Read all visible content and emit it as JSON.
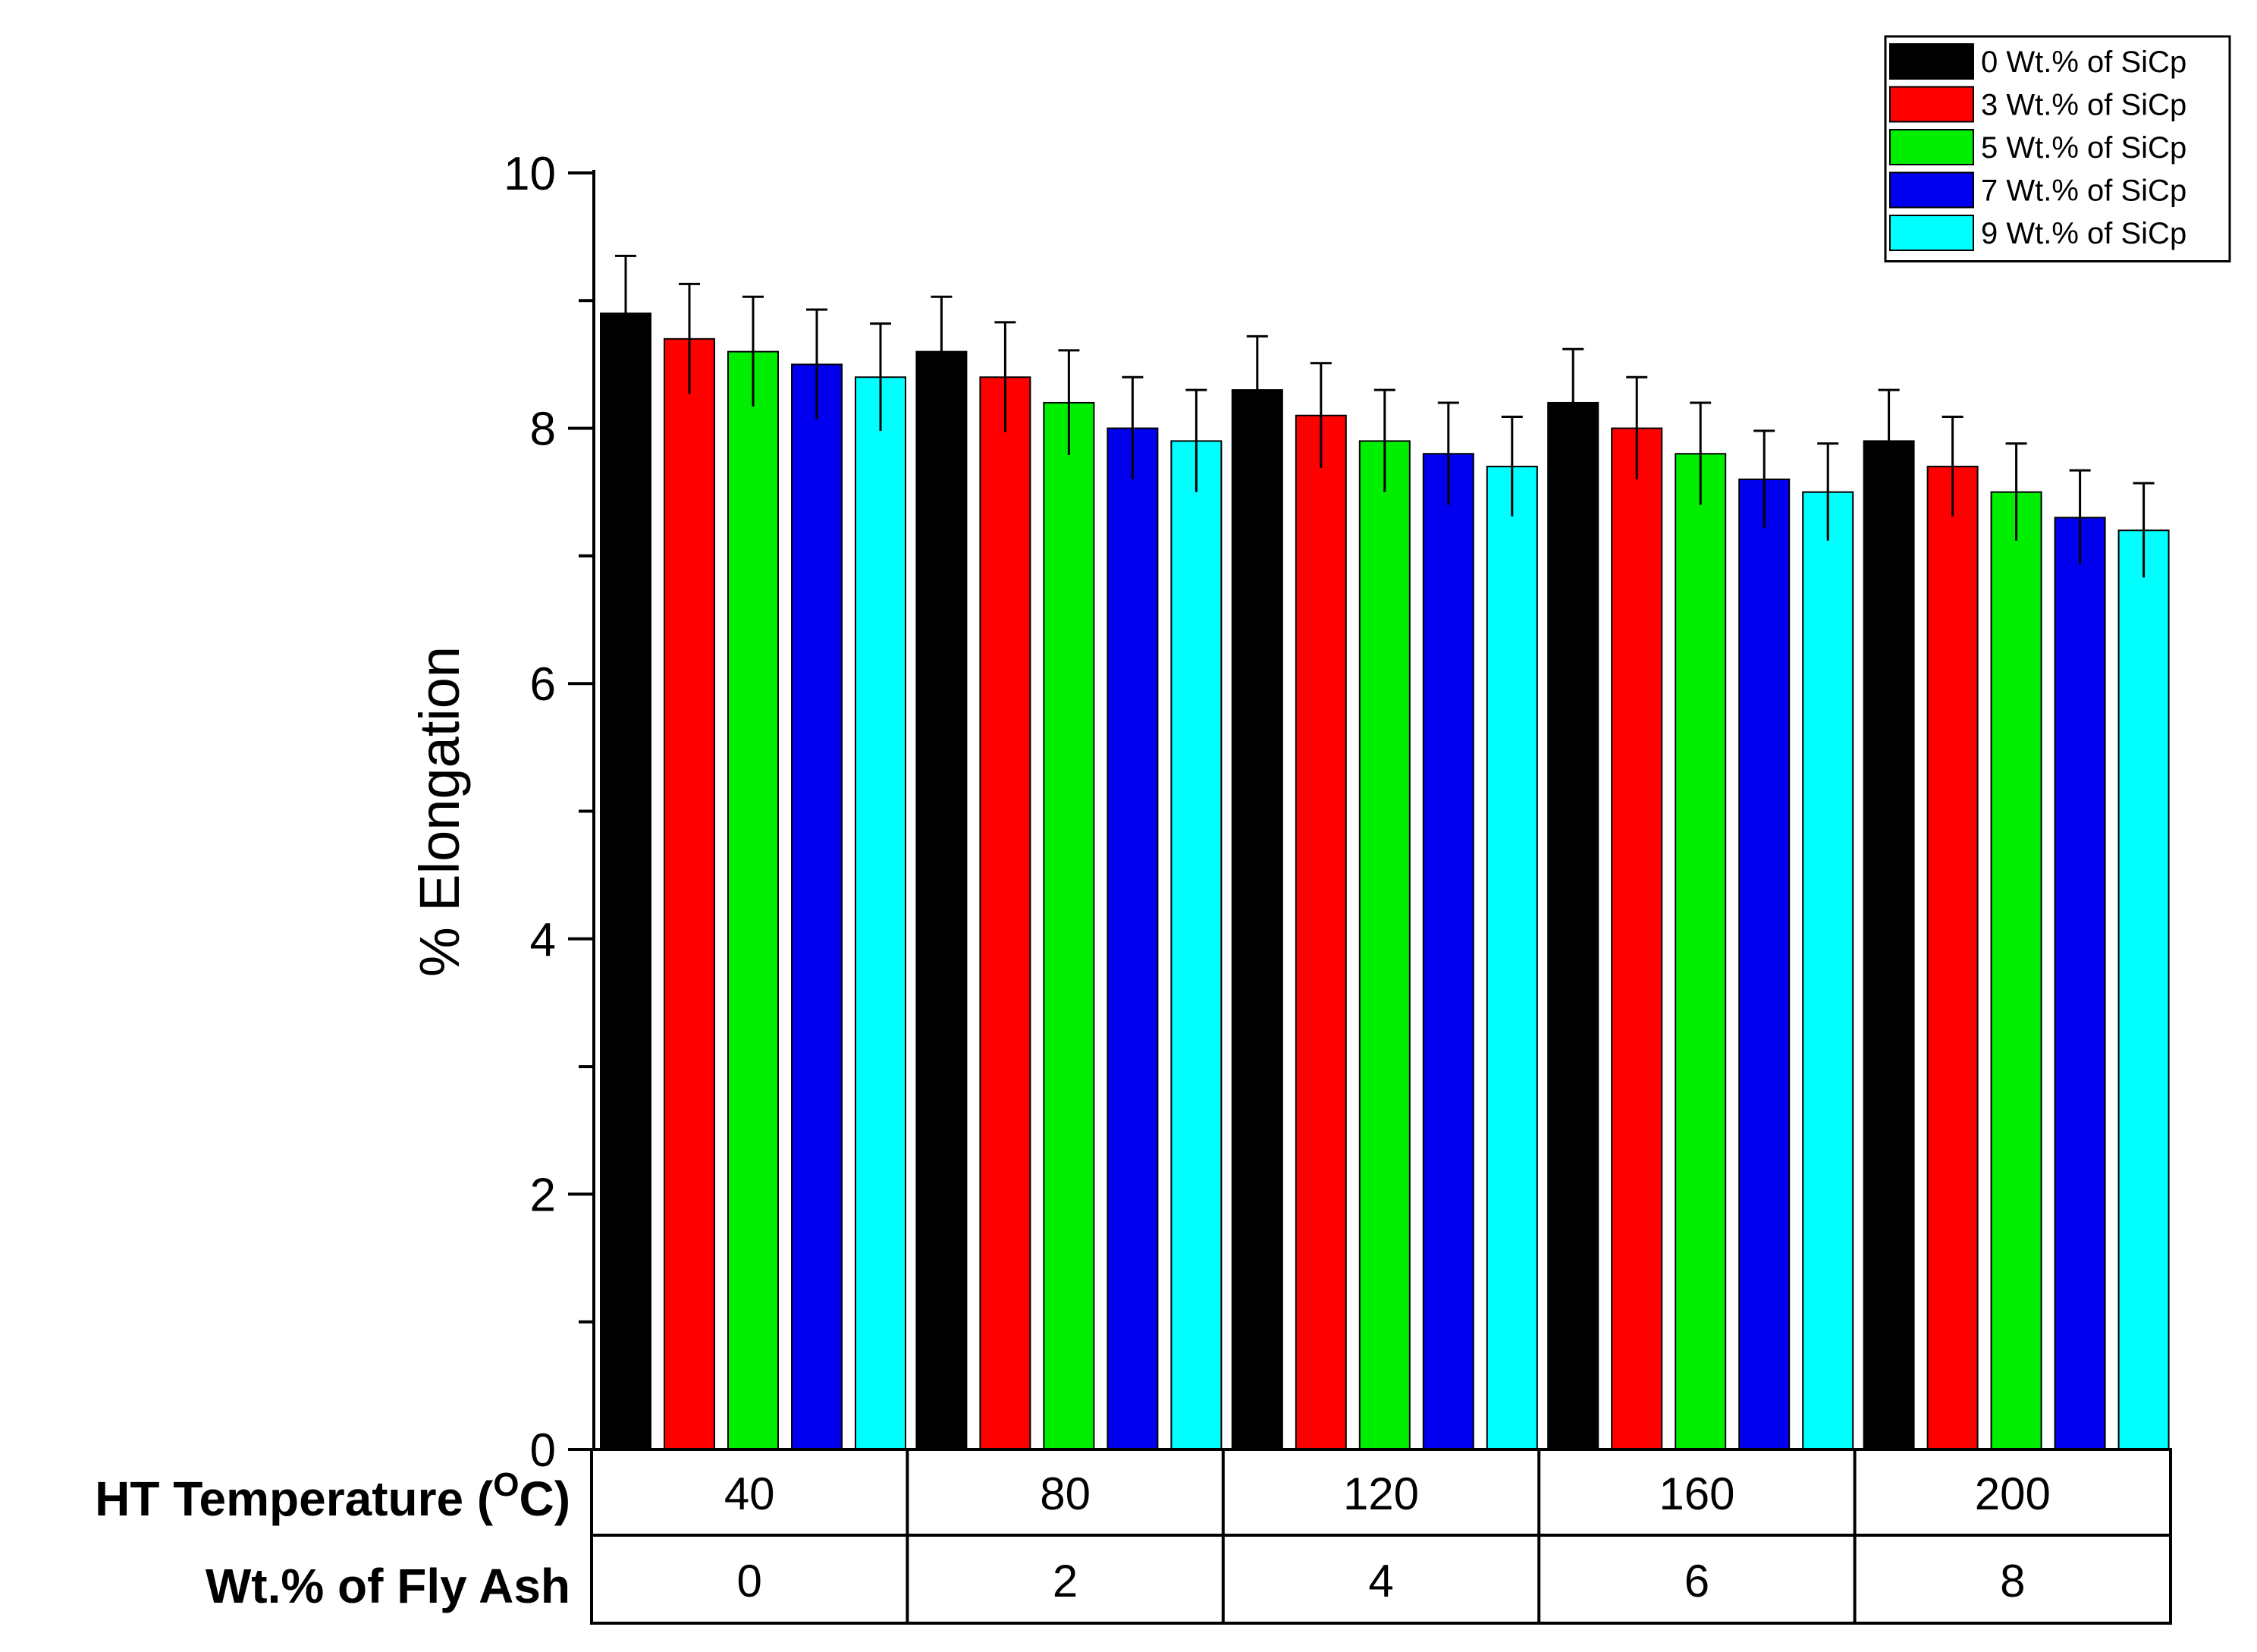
{
  "chart_data": {
    "type": "bar",
    "title": "",
    "xlabel": "",
    "ylabel": "% Elongation",
    "ylim": [
      0,
      10
    ],
    "yticks": [
      "0",
      "2",
      "4",
      "6",
      "8",
      "10"
    ],
    "categories": [
      "40",
      "80",
      "120",
      "160",
      "200"
    ],
    "category_table": [
      {
        "label": "HT Temperature (",
        "label_sup": "O",
        "label_suffix": "C)",
        "values": [
          "40",
          "80",
          "120",
          "160",
          "200"
        ]
      },
      {
        "label": "Wt.% of Fly Ash",
        "values": [
          "0",
          "2",
          "4",
          "6",
          "8"
        ]
      }
    ],
    "series": [
      {
        "name": "0 Wt.% of SiCp",
        "color": "#000000",
        "values": [
          8.9,
          8.6,
          8.3,
          8.2,
          7.9
        ],
        "errors": [
          0.45,
          0.43,
          0.42,
          0.42,
          0.4
        ]
      },
      {
        "name": "3 Wt.% of SiCp",
        "color": "#ff0000",
        "values": [
          8.7,
          8.4,
          8.1,
          8.0,
          7.7
        ],
        "errors": [
          0.43,
          0.43,
          0.41,
          0.4,
          0.39
        ]
      },
      {
        "name": "5 Wt.% of SiCp",
        "color": "#00ee00",
        "values": [
          8.6,
          8.2,
          7.9,
          7.8,
          7.5
        ],
        "errors": [
          0.43,
          0.41,
          0.4,
          0.4,
          0.38
        ]
      },
      {
        "name": "7 Wt.% of SiCp",
        "color": "#0000ee",
        "values": [
          8.5,
          8.0,
          7.8,
          7.6,
          7.3
        ],
        "errors": [
          0.43,
          0.4,
          0.4,
          0.38,
          0.37
        ]
      },
      {
        "name": "9 Wt.% of SiCp",
        "color": "#00ffff",
        "values": [
          8.4,
          7.9,
          7.7,
          7.5,
          7.2
        ],
        "errors": [
          0.42,
          0.4,
          0.39,
          0.38,
          0.37
        ]
      }
    ],
    "legend_position": "top-right"
  }
}
